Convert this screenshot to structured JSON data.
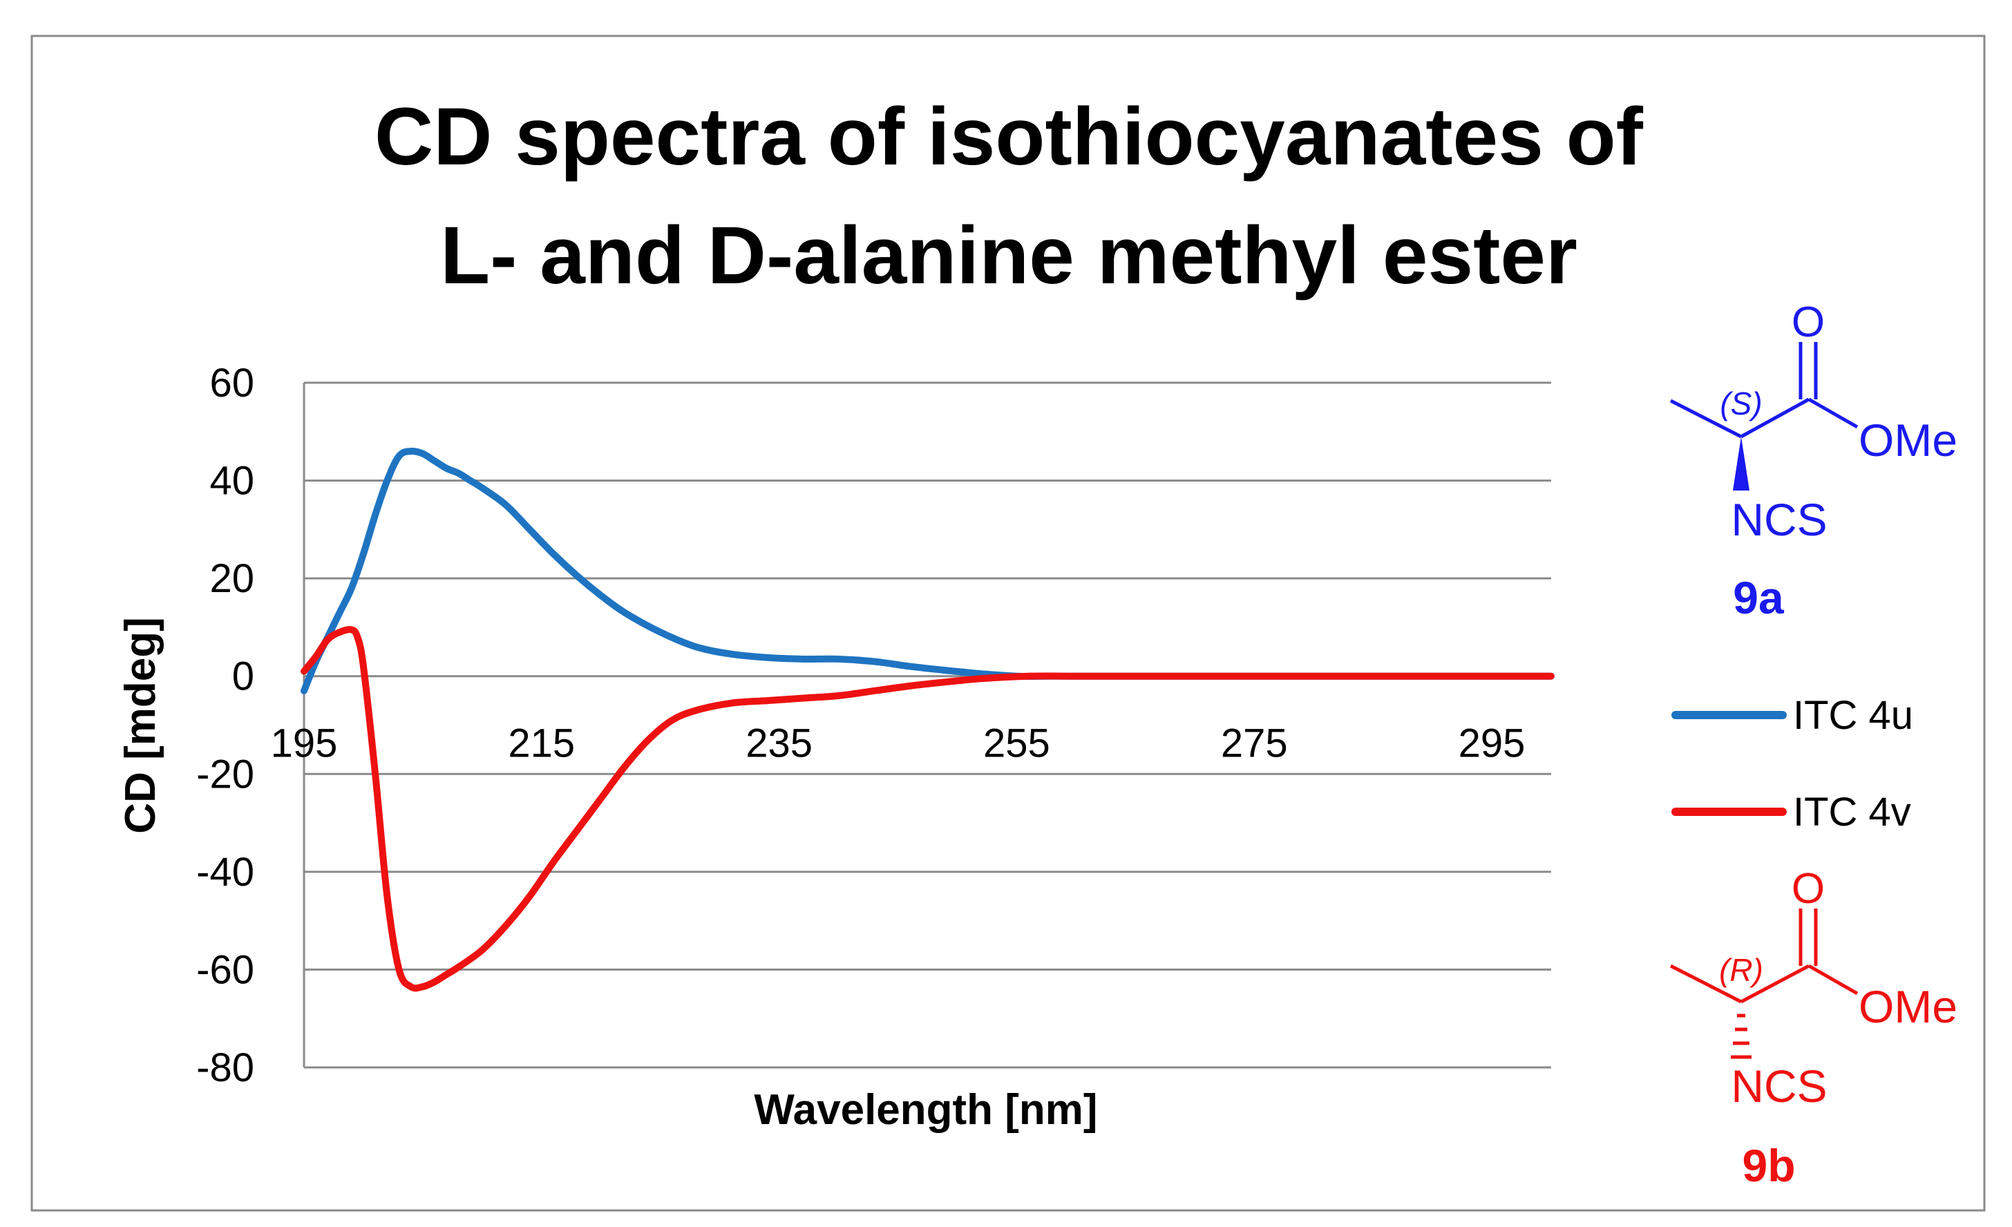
{
  "chart_data": {
    "type": "line",
    "title_line1": "CD spectra of isothiocyanates of",
    "title_line2": "L- and D-alanine methyl ester",
    "xlabel": "Wavelength [nm]",
    "ylabel": "CD [mdeg]",
    "xlim": [
      195,
      300
    ],
    "ylim": [
      -80,
      60
    ],
    "x_ticks": [
      195,
      215,
      235,
      255,
      275,
      295
    ],
    "y_ticks": [
      60,
      40,
      20,
      0,
      -20,
      -40,
      -60,
      -80
    ],
    "grid": true,
    "legend_position": "right",
    "series": [
      {
        "name": "ITC 4u",
        "color": "#1f74c1",
        "x": [
          195,
          196,
          197,
          198,
          199,
          200,
          201,
          202,
          203,
          204,
          205,
          206,
          207,
          208,
          209,
          210,
          212,
          214,
          216,
          218,
          220,
          222,
          225,
          228,
          231,
          234,
          237,
          240,
          243,
          246,
          249,
          252,
          255,
          258,
          262,
          266,
          270,
          275,
          280,
          285,
          290,
          295,
          300
        ],
        "y": [
          -3,
          3,
          8,
          13,
          18,
          25,
          33,
          40,
          45,
          46,
          45.5,
          44,
          42.5,
          41.5,
          40,
          38.5,
          35,
          30,
          25,
          20.5,
          16.5,
          13,
          9,
          6,
          4.5,
          3.8,
          3.5,
          3.5,
          3,
          2,
          1.2,
          0.5,
          0,
          0,
          0,
          0,
          0,
          0,
          0,
          0,
          0,
          0,
          0
        ]
      },
      {
        "name": "ITC 4v",
        "color": "#ee1111",
        "x": [
          195,
          196,
          197,
          198,
          199,
          199.5,
          200,
          201,
          202,
          203,
          204,
          205,
          206,
          207,
          208,
          210,
          212,
          214,
          216,
          218,
          220,
          222,
          224,
          226,
          228,
          231,
          234,
          237,
          240,
          243,
          246,
          249,
          252,
          256,
          260,
          265,
          270,
          275,
          280,
          285,
          290,
          295,
          300
        ],
        "y": [
          1,
          4,
          7.5,
          9,
          9.5,
          8,
          2,
          -20,
          -45,
          -60,
          -63.5,
          -63.5,
          -62.5,
          -61,
          -59.5,
          -56,
          -51,
          -45,
          -38,
          -31.5,
          -25,
          -18.5,
          -13,
          -9,
          -7,
          -5.5,
          -5,
          -4.5,
          -4,
          -3,
          -2,
          -1.2,
          -0.5,
          0,
          0,
          0,
          0,
          0,
          0,
          0,
          0,
          0,
          0
        ]
      }
    ]
  },
  "structures": {
    "top": {
      "label": "9a",
      "color": "#1a1aee",
      "stereo": "(S)",
      "carbonyl_o": "O",
      "ester": "OMe",
      "group": "NCS"
    },
    "bottom": {
      "label": "9b",
      "color": "#ee1111",
      "stereo": "(R)",
      "carbonyl_o": "O",
      "ester": "OMe",
      "group": "NCS"
    }
  }
}
